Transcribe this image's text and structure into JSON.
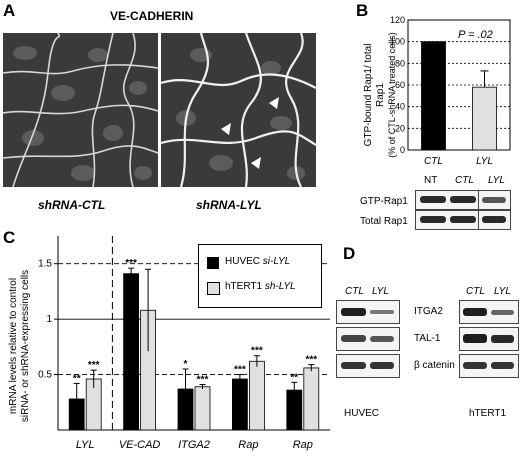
{
  "panelA": {
    "letter": "A",
    "title": "VE-CADHERIN",
    "left_caption": "shRNA-CTL",
    "right_caption": "shRNA-LYL"
  },
  "panelB": {
    "letter": "B",
    "ylabel_line1": "GTP-bound Rap1/ total",
    "ylabel_line2": "Rap1",
    "ylabel_line3": "(% of CTL-shRNA treated cells)",
    "pvalue": "P = .02",
    "blot_columns": [
      "NT",
      "CTL",
      "LYL"
    ],
    "blot_rows": [
      "GTP-Rap1",
      "Total Rap1"
    ]
  },
  "panelC": {
    "letter": "C",
    "ylabel_line1": "mRNA levels relative to control",
    "ylabel_line2": "siRNA- or shRNA-expressing cells",
    "legend_huvec_prefix": "HUVEC ",
    "legend_huvec_suffix": "si-LYL",
    "legend_htert_prefix": "hTERT1 ",
    "legend_htert_suffix": "sh-LYL"
  },
  "panelD": {
    "letter": "D",
    "huvec_cols": [
      "CTL",
      "LYL"
    ],
    "htert_cols": [
      "CTL",
      "LYL"
    ],
    "rows": [
      "ITGA2",
      "TAL-1",
      "β catenin"
    ],
    "huvec_label": "HUVEC",
    "htert_label": "hTERT1"
  },
  "colors": {
    "dark": "#000000",
    "light": "#e0e0e0",
    "micrograph": "#3a3a3a"
  },
  "chart_data": [
    {
      "type": "bar",
      "ylabel": "GTP-bound Rap1/ total Rap1 (% of CTL-shRNA treated cells)",
      "categories": [
        "CTL",
        "LYL"
      ],
      "values": [
        100,
        58
      ],
      "errors": [
        0,
        15
      ],
      "ylim": [
        0,
        120
      ],
      "yticks": [
        "0",
        "20",
        "40",
        "60",
        "80",
        "100",
        "120"
      ],
      "grid": true
    },
    {
      "type": "bar",
      "ylabel": "mRNA levels relative to control siRNA- or shRNA-expressing cells",
      "categories": [
        "LYL",
        "VE-CAD",
        "ITGA2",
        "Rap",
        "Rap"
      ],
      "series": [
        {
          "name": "HUVEC si-LYL",
          "values": [
            0.28,
            1.41,
            0.37,
            0.46,
            0.36
          ],
          "errors": [
            0.14,
            0.05,
            0.18,
            0.04,
            0.07
          ],
          "stars": [
            "**",
            "***",
            "*",
            "***",
            "**"
          ]
        },
        {
          "name": "hTERT1 sh-LYL",
          "values": [
            0.46,
            1.08,
            0.39,
            0.62,
            0.56
          ],
          "errors": [
            0.08,
            0.37,
            0.02,
            0.05,
            0.03
          ],
          "stars": [
            "***",
            "",
            "***",
            "***",
            "***"
          ]
        }
      ],
      "ylim": [
        0,
        1.75
      ],
      "yticks": [
        "0.5",
        "1",
        "1.5"
      ],
      "reference_lines": [
        0.5,
        1.0,
        1.5
      ]
    }
  ]
}
